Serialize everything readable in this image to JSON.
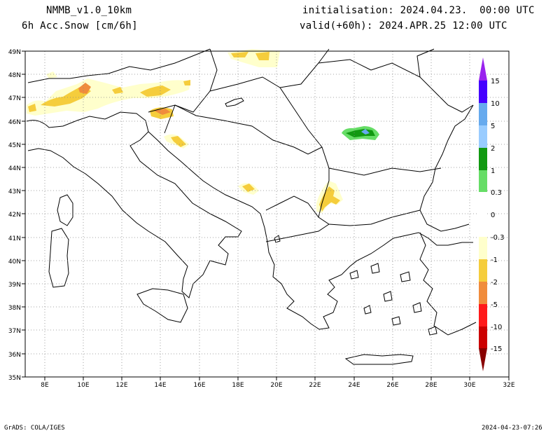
{
  "header": {
    "model": "NMMB_v1.0_10km",
    "variable": "6h Acc.Snow [cm/6h]",
    "init": "initialisation: 2024.04.23.  00:00 UTC",
    "valid": "valid(+60h): 2024.APR.25 12:00 UTC"
  },
  "axes": {
    "lat_labels": [
      "49N",
      "48N",
      "47N",
      "46N",
      "45N",
      "44N",
      "43N",
      "42N",
      "41N",
      "40N",
      "39N",
      "38N",
      "37N",
      "36N",
      "35N"
    ],
    "lon_labels": [
      "8E",
      "10E",
      "12E",
      "14E",
      "16E",
      "18E",
      "20E",
      "22E",
      "24E",
      "26E",
      "28E",
      "30E",
      "32E"
    ]
  },
  "colorbar": {
    "labels": [
      "15",
      "10",
      "5",
      "2",
      "1",
      "0.3",
      "0",
      "-0.3",
      "-1",
      "-2",
      "-5",
      "-10",
      "-15"
    ],
    "colors": [
      "#4400ff",
      "#4d73ff",
      "#66aaee",
      "#99ccff",
      "#119911",
      "#66dd66",
      "#ffffff",
      "#ffffcc",
      "#f5cd3c",
      "#f08c3c",
      "#ff1a1a",
      "#cc0000",
      "#880000"
    ]
  },
  "footer": {
    "left": "GrADS: COLA/IGES",
    "right": "2024-04-23-07:26"
  }
}
